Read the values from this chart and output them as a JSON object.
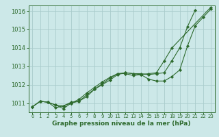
{
  "title": "Graphe pression niveau de la mer (hPa)",
  "bg_color": "#cce8e8",
  "grid_color": "#aacccc",
  "line_color": "#2d6a2d",
  "marker_color": "#2d6a2d",
  "xlim": [
    -0.5,
    23.5
  ],
  "ylim": [
    1010.5,
    1016.3
  ],
  "yticks": [
    1011,
    1012,
    1013,
    1014,
    1015,
    1016
  ],
  "xticks": [
    0,
    1,
    2,
    3,
    4,
    5,
    6,
    7,
    8,
    9,
    10,
    11,
    12,
    13,
    14,
    15,
    16,
    17,
    18,
    19,
    20,
    21,
    22,
    23
  ],
  "series": [
    [
      1010.8,
      1011.1,
      1011.05,
      1010.9,
      1010.85,
      1011.05,
      1011.1,
      1011.35,
      1011.75,
      1012.0,
      1012.25,
      1012.55,
      1012.65,
      1012.6,
      1012.55,
      1012.3,
      1012.2,
      1012.2,
      1012.45,
      1012.8,
      1014.1,
      1015.2,
      1015.65,
      1016.1
    ],
    [
      1010.8,
      1011.1,
      1011.05,
      1010.9,
      1010.7,
      1011.0,
      1011.1,
      1011.45,
      1011.75,
      1012.05,
      1012.35,
      1012.6,
      1012.65,
      1012.6,
      1012.6,
      1012.55,
      1012.6,
      1012.65,
      1013.3,
      1014.0,
      1015.15,
      1016.05
    ],
    [
      1010.8,
      1011.1,
      1011.05,
      1010.75,
      1010.85,
      1011.0,
      1011.2,
      1011.55,
      1011.85,
      1012.15,
      1012.4,
      1012.6,
      1012.6,
      1012.5,
      1012.55,
      1012.6,
      1012.65,
      1013.3,
      1014.0,
      1016.2
    ]
  ],
  "series_x": [
    [
      0,
      1,
      2,
      3,
      4,
      5,
      6,
      7,
      8,
      9,
      10,
      11,
      12,
      13,
      14,
      15,
      16,
      17,
      18,
      19,
      20,
      21,
      22,
      23
    ],
    [
      0,
      1,
      2,
      3,
      4,
      5,
      6,
      7,
      8,
      9,
      10,
      11,
      12,
      13,
      14,
      15,
      16,
      17,
      18,
      19,
      20,
      21
    ],
    [
      0,
      1,
      2,
      3,
      4,
      5,
      6,
      7,
      8,
      9,
      10,
      11,
      12,
      13,
      14,
      15,
      16,
      17,
      18,
      23
    ]
  ],
  "ylabel_fontsize": 5.5,
  "xlabel_fontsize": 6.5,
  "ytick_fontsize": 6,
  "xtick_fontsize": 5
}
